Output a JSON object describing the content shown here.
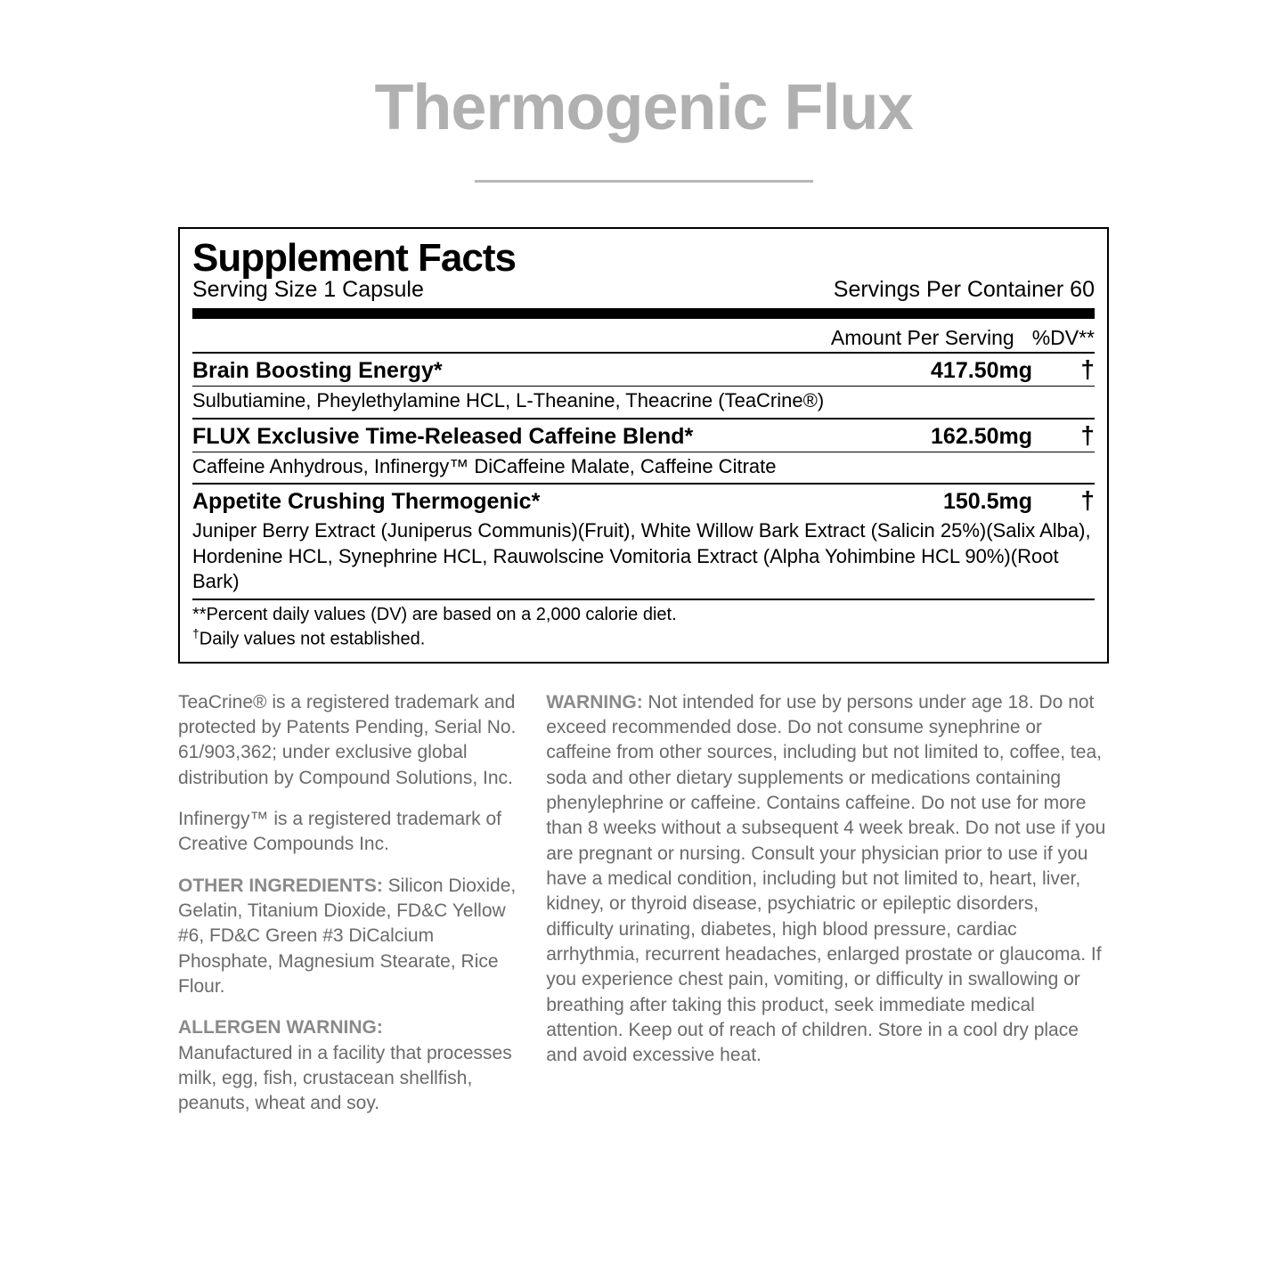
{
  "title": "Thermogenic Flux",
  "facts": {
    "heading": "Supplement Facts",
    "serving_size": "Serving Size 1 Capsule",
    "servings_per_container": "Servings Per Container 60",
    "amount_header": "Amount Per Serving",
    "dv_header": "%DV**",
    "blends": [
      {
        "name": "Brain Boosting Energy*",
        "amount": "417.50mg",
        "dv": "†",
        "ingredients": "Sulbutiamine, Pheylethylamine HCL, L-Theanine, Theacrine (TeaCrine®)"
      },
      {
        "name": "FLUX Exclusive Time-Released Caffeine Blend*",
        "amount": "162.50mg",
        "dv": "†",
        "ingredients": "Caffeine Anhydrous, Infinergy™ DiCaffeine Malate, Caffeine Citrate"
      },
      {
        "name": "Appetite Crushing Thermogenic*",
        "amount": "150.5mg",
        "dv": "†",
        "ingredients": "Juniper Berry Extract (Juniperus Communis)(Fruit), White Willow Bark Extract (Salicin 25%)(Salix Alba), Hordenine HCL, Synephrine HCL, Rauwolscine Vomitoria Extract (Alpha Yohimbine HCL 90%)(Root Bark)"
      }
    ],
    "footnote1": "**Percent daily values (DV) are based on a 2,000 calorie diet.",
    "footnote2_prefix": "†",
    "footnote2": "Daily values not established."
  },
  "left": {
    "teacrine": "TeaCrine® is a registered trademark and protected by Patents Pending, Serial No. 61/903,362; under exclusive global distribution by Compound Solutions, Inc.",
    "infinergy": "Infinergy™ is a registered trademark of Creative Compounds Inc.",
    "other_label": "OTHER INGREDIENTS:",
    "other_text": " Silicon Dioxide, Gelatin, Titanium Dioxide, FD&C Yellow #6, FD&C Green #3 DiCalcium Phosphate, Magnesium Stearate, Rice Flour.",
    "allergen_label": "ALLERGEN WARNING:",
    "allergen_text": "Manufactured in a facility that processes milk, egg, fish, crustacean shellfish, peanuts, wheat and soy."
  },
  "right": {
    "warning_label": "WARNING:",
    "warning_text": " Not intended for use by persons under age 18. Do not exceed recommended dose. Do not consume synephrine or caffeine from other sources, including but not limited to, coffee, tea, soda and other dietary supplements or medications containing phenylephrine or caffeine. Contains caffeine. Do not use for more than 8 weeks without a subsequent 4 week break. Do not use if you are pregnant or nursing. Consult your physician prior to use if you have a medical condition, including but not limited to, heart, liver, kidney, or thyroid disease, psychiatric or epileptic disorders, difficulty urinating, diabetes, high blood pressure, cardiac arrhythmia, recurrent headaches, enlarged prostate or glaucoma. If you experience chest pain, vomiting, or difficulty in swallowing or breathing after taking this product, seek immediate medical attention. Keep out of reach of children. Store in a cool dry place and avoid excessive heat."
  }
}
